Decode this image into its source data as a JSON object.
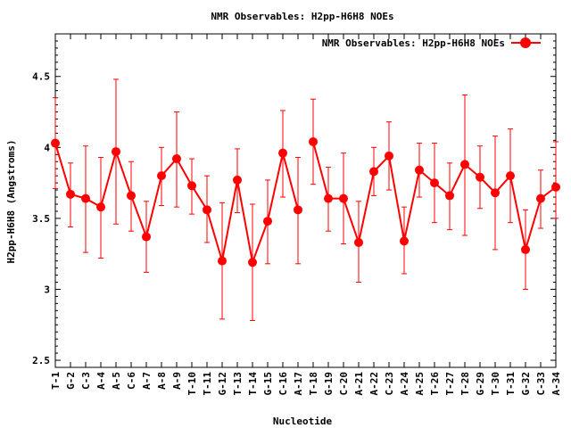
{
  "chart_data": {
    "type": "line",
    "title": "NMR Observables: H2pp-H6H8 NOEs",
    "xlabel": "Nucleotide",
    "ylabel": "H2pp-H6H8 (Angstroms)",
    "ylim": [
      2.45,
      4.8
    ],
    "yticks": [
      "2.5",
      "3",
      "3.5",
      "4",
      "4.5"
    ],
    "ytick_values": [
      2.5,
      3,
      3.5,
      4,
      4.5
    ],
    "grid": false,
    "legend_position": "top-right",
    "color": "#ff0000",
    "series": [
      {
        "name": "NMR Observables: H2pp-H6H8 NOEs",
        "segments": [
          {
            "categories": [
              "T-1",
              "G-2",
              "C-3",
              "A-4",
              "A-5",
              "C-6",
              "A-7",
              "A-8",
              "A-9",
              "T-10",
              "T-11",
              "G-12",
              "T-13",
              "T-14",
              "G-15",
              "C-16",
              "A-17"
            ],
            "x": [
              1,
              2,
              3,
              4,
              5,
              6,
              7,
              8,
              9,
              10,
              11,
              12,
              13,
              14,
              15,
              16,
              17
            ],
            "values": [
              4.03,
              3.67,
              3.64,
              3.58,
              3.97,
              3.66,
              3.37,
              3.8,
              3.92,
              3.73,
              3.56,
              3.2,
              3.77,
              3.19,
              3.48,
              3.96,
              3.56
            ],
            "err_low": [
              3.71,
              3.44,
              3.26,
              3.22,
              3.46,
              3.41,
              3.12,
              3.59,
              3.58,
              3.53,
              3.33,
              2.79,
              3.54,
              2.78,
              3.18,
              3.65,
              3.18
            ],
            "err_high": [
              4.35,
              3.89,
              4.01,
              3.93,
              4.48,
              3.9,
              3.62,
              4.0,
              4.25,
              3.92,
              3.8,
              3.61,
              3.99,
              3.6,
              3.77,
              4.26,
              3.93
            ]
          },
          {
            "categories": [
              "T-18",
              "G-19",
              "C-20",
              "A-21",
              "A-22",
              "C-23",
              "A-24",
              "A-25",
              "T-26",
              "T-27",
              "T-28",
              "G-29",
              "T-30",
              "T-31",
              "G-32",
              "C-33",
              "A-34"
            ],
            "x": [
              18,
              19,
              20,
              21,
              22,
              23,
              24,
              25,
              26,
              27,
              28,
              29,
              30,
              31,
              32,
              33,
              34
            ],
            "values": [
              4.04,
              3.64,
              3.64,
              3.33,
              3.83,
              3.94,
              3.34,
              3.84,
              3.75,
              3.66,
              3.88,
              3.79,
              3.68,
              3.8,
              3.28,
              3.64,
              3.72
            ],
            "err_low": [
              3.74,
              3.41,
              3.32,
              3.05,
              3.66,
              3.7,
              3.11,
              3.65,
              3.47,
              3.42,
              3.38,
              3.57,
              3.28,
              3.47,
              3.0,
              3.43,
              3.5
            ],
            "err_high": [
              4.34,
              3.86,
              3.96,
              3.62,
              4.0,
              4.18,
              3.58,
              4.03,
              4.03,
              3.89,
              4.37,
              4.01,
              4.08,
              4.13,
              3.56,
              3.84,
              4.04
            ]
          }
        ]
      }
    ]
  }
}
